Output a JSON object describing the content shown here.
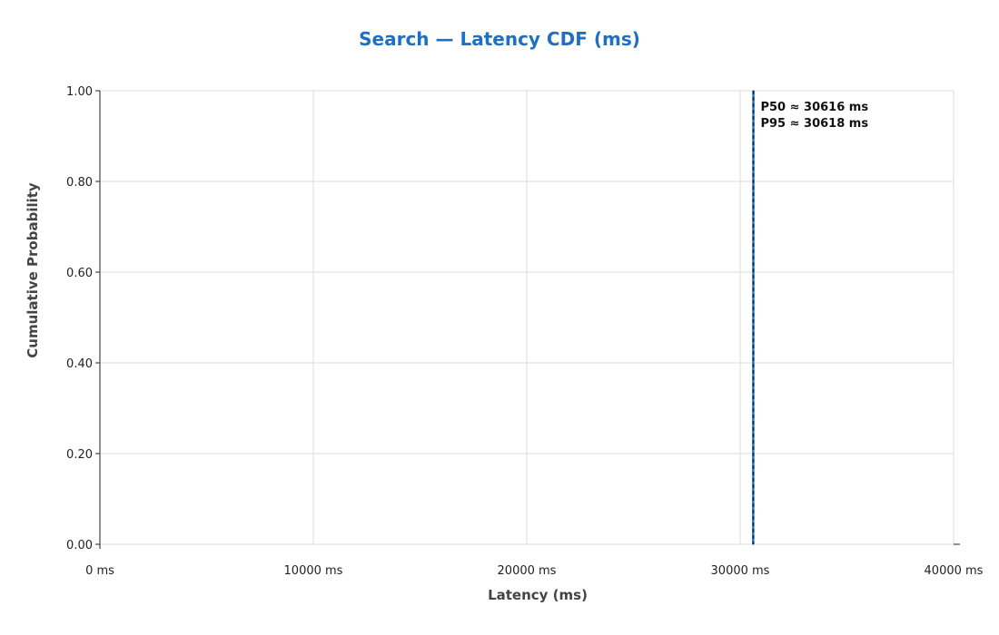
{
  "chart_data": {
    "type": "line",
    "title": "Search — Latency CDF (ms)",
    "xlabel": "Latency (ms)",
    "ylabel": "Cumulative Probability",
    "xlim": [
      0,
      40000
    ],
    "ylim": [
      0,
      1
    ],
    "x_ticks": [
      {
        "value": 0,
        "label": "0 ms"
      },
      {
        "value": 10000,
        "label": "10000 ms"
      },
      {
        "value": 20000,
        "label": "20000 ms"
      },
      {
        "value": 30000,
        "label": "30000 ms"
      },
      {
        "value": 40000,
        "label": "40000 ms"
      }
    ],
    "y_ticks": [
      {
        "value": 0,
        "label": "0.00"
      },
      {
        "value": 0.2,
        "label": "0.20"
      },
      {
        "value": 0.4,
        "label": "0.40"
      },
      {
        "value": 0.6,
        "label": "0.60"
      },
      {
        "value": 0.8,
        "label": "0.80"
      },
      {
        "value": 1,
        "label": "1.00"
      }
    ],
    "grid": true,
    "series": [
      {
        "color": "#1f77d0",
        "x": [
          30610,
          30612,
          30614,
          30616,
          30617,
          30618,
          30620
        ],
        "y": [
          0.0,
          0.2,
          0.4,
          0.5,
          0.8,
          0.95,
          1.0
        ]
      }
    ],
    "reference_lines": [
      {
        "x": 30616,
        "color": "#0a2a4a",
        "style": "dashed"
      },
      {
        "x": 30618,
        "color": "#0a2a4a",
        "style": "dashed"
      }
    ],
    "annotations": [
      {
        "text": "P50 ≈ 30616 ms"
      },
      {
        "text": "P95 ≈ 30618 ms"
      }
    ]
  }
}
